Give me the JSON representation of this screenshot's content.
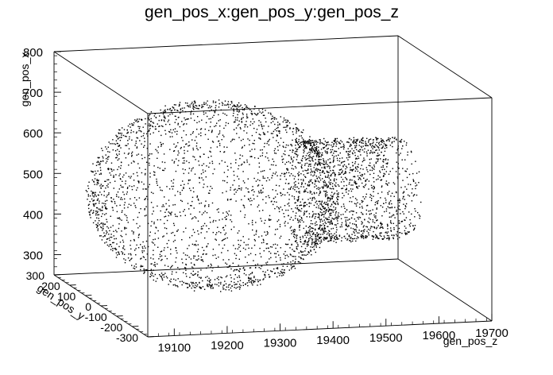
{
  "chart_data": {
    "type": "scatter",
    "dimensions": 3,
    "title": "gen_pos_x:gen_pos_y:gen_pos_z",
    "xlabel": "gen_pos_z",
    "ylabel": "gen_pos_y",
    "zlabel": "gen_pos_x",
    "xlim": [
      19050,
      19700
    ],
    "ylim": [
      -300,
      300
    ],
    "zlim": [
      250,
      800
    ],
    "x_ticks": [
      "19100",
      "19200",
      "19300",
      "19400",
      "19500",
      "19600",
      "19700"
    ],
    "y_ticks": [
      "-300",
      "-200",
      "-100",
      "0",
      "100",
      "200",
      "300"
    ],
    "z_ticks": [
      "300",
      "400",
      "500",
      "600",
      "700",
      "800"
    ],
    "marker": "dot",
    "point_color": "#000000",
    "shapes": [
      {
        "name": "sphere-shell",
        "center_z": 19260,
        "center_y": 0,
        "center_x": 510,
        "radius": 230,
        "approx_points": 2600
      },
      {
        "name": "cylinder",
        "axis": "gen_pos_z",
        "z_range": [
          19420,
          19620
        ],
        "center_y": 0,
        "center_x": 510,
        "radius": 125,
        "approx_points": 1500
      }
    ]
  }
}
